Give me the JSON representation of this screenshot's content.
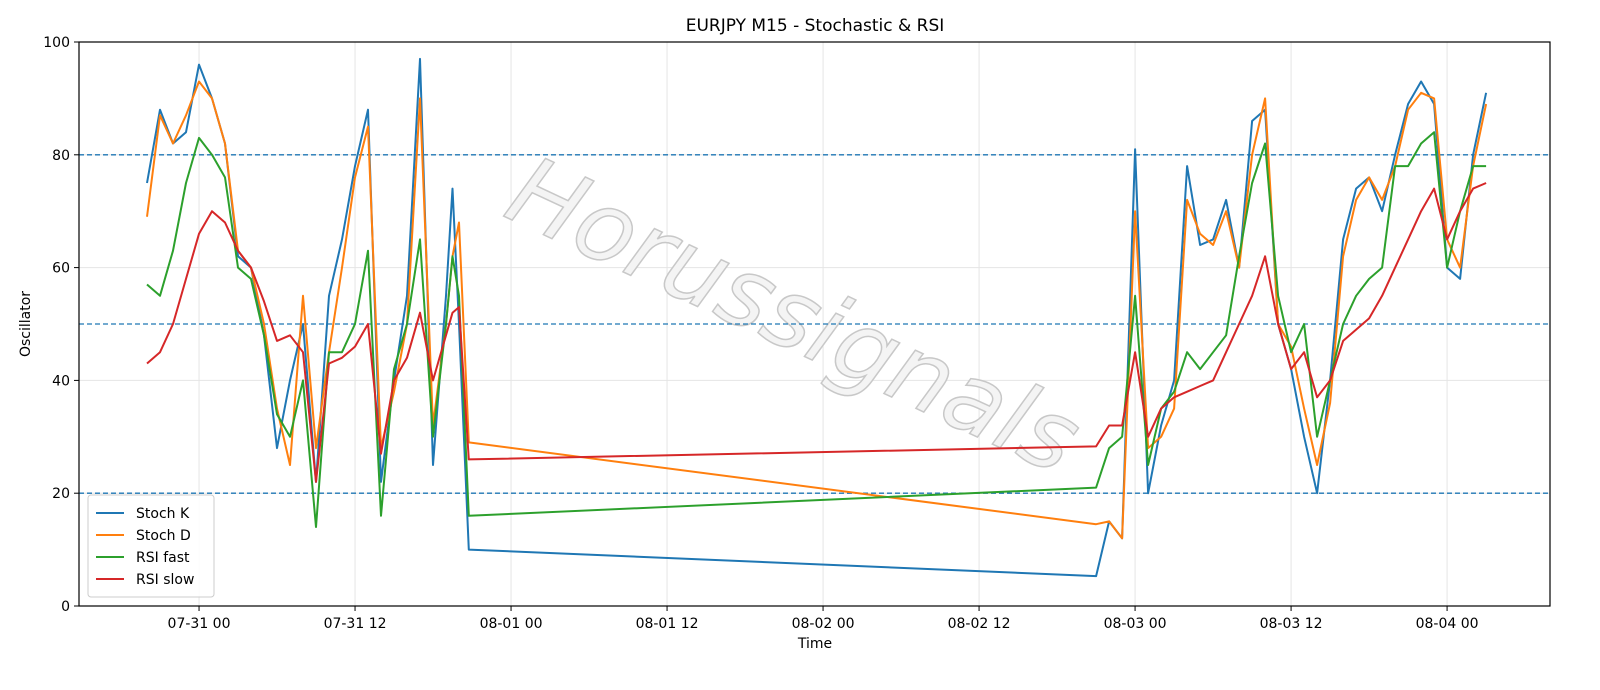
{
  "chart_data": {
    "type": "line",
    "title": "EURJPY M15 - Stochastic & RSI",
    "xlabel": "Time",
    "ylabel": "Oscillator",
    "watermark": "Horussignals",
    "x": [
      "07-30 20:00",
      "07-30 21:00",
      "07-30 22:00",
      "07-30 23:00",
      "07-31 00:00",
      "07-31 01:00",
      "07-31 02:00",
      "07-31 03:00",
      "07-31 04:00",
      "07-31 05:00",
      "07-31 06:00",
      "07-31 07:00",
      "07-31 08:00",
      "07-31 09:00",
      "07-31 10:00",
      "07-31 11:00",
      "07-31 12:00",
      "07-31 13:00",
      "07-31 14:00",
      "07-31 15:00",
      "07-31 16:00",
      "07-31 17:00",
      "07-31 18:00",
      "07-31 19:00",
      "07-31 19:30",
      "07-31 20:00",
      "07-31 20:45",
      "08-02 21:00",
      "08-02 22:00",
      "08-02 23:00",
      "08-03 00:00",
      "08-03 01:00",
      "08-03 02:00",
      "08-03 03:00",
      "08-03 04:00",
      "08-03 05:00",
      "08-03 06:00",
      "08-03 07:00",
      "08-03 08:00",
      "08-03 09:00",
      "08-03 10:00",
      "08-03 11:00",
      "08-03 12:00",
      "08-03 13:00",
      "08-03 14:00",
      "08-03 15:00",
      "08-03 16:00",
      "08-03 17:00",
      "08-03 18:00",
      "08-03 19:00",
      "08-03 20:00",
      "08-03 21:00",
      "08-03 22:00",
      "08-03 23:00",
      "08-04 00:00",
      "08-04 01:00",
      "08-04 02:00",
      "08-04 03:00"
    ],
    "series": [
      {
        "name": "Stoch K",
        "color": "#1f77b4",
        "values": [
          75,
          88,
          82,
          84,
          96,
          90,
          82,
          62,
          60,
          48,
          28,
          40,
          50,
          22,
          55,
          65,
          78,
          88,
          22,
          40,
          55,
          97,
          25,
          55,
          74,
          50,
          10,
          5.3,
          15,
          12,
          81,
          20,
          32,
          40,
          78,
          64,
          65,
          72,
          60,
          86,
          88,
          50,
          42,
          30,
          20,
          40,
          65,
          74,
          76,
          70,
          80,
          89,
          93,
          89,
          60,
          58,
          80,
          91
        ]
      },
      {
        "name": "Stoch D",
        "color": "#ff7f0e",
        "values": [
          69,
          87,
          82,
          87,
          93,
          90,
          82,
          63,
          60,
          50,
          35,
          25,
          55,
          28,
          45,
          60,
          76,
          85,
          28,
          38,
          50,
          90,
          32,
          50,
          62,
          68,
          29,
          14.5,
          15,
          12,
          70,
          28,
          30,
          35,
          72,
          66,
          64,
          70,
          60,
          80,
          90,
          50,
          46,
          35,
          25,
          36,
          62,
          72,
          76,
          72,
          78,
          88,
          91,
          90,
          65,
          60,
          78,
          89
        ]
      },
      {
        "name": "RSI fast",
        "color": "#2ca02c",
        "values": [
          57,
          55,
          63,
          75,
          83,
          80,
          76,
          60,
          58,
          48,
          34,
          30,
          40,
          14,
          45,
          45,
          50,
          63,
          16,
          42,
          50,
          65,
          30,
          50,
          62,
          55,
          16,
          21,
          28,
          30,
          55,
          25,
          35,
          38,
          45,
          42,
          45,
          48,
          62,
          75,
          82,
          55,
          45,
          50,
          30,
          40,
          50,
          55,
          58,
          60,
          78,
          78,
          82,
          84,
          60,
          70,
          78,
          78
        ]
      },
      {
        "name": "RSI slow",
        "color": "#d62728",
        "values": [
          43,
          45,
          50,
          58,
          66,
          70,
          68,
          63,
          60,
          54,
          47,
          48,
          45,
          22,
          43,
          44,
          46,
          50,
          27,
          40,
          44,
          52,
          40,
          48,
          52,
          53,
          26,
          28.3,
          32,
          32,
          45,
          30,
          35,
          37,
          38,
          39,
          40,
          45,
          50,
          55,
          62,
          50,
          42,
          45,
          37,
          40,
          47,
          49,
          51,
          55,
          60,
          65,
          70,
          74,
          65,
          70,
          74,
          75
        ]
      }
    ],
    "xlim": [
      "07-30 14:46",
      "08-04 07:55"
    ],
    "xticks": [
      "07-31 00",
      "07-31 12",
      "08-01 00",
      "08-01 12",
      "08-02 00",
      "08-02 12",
      "08-03 00",
      "08-03 12",
      "08-04 00"
    ],
    "ylim": [
      0,
      100
    ],
    "yticks": [
      0,
      20,
      40,
      60,
      80,
      100
    ],
    "hlines": [
      20,
      50,
      80
    ],
    "hline_color": "#1f77b4",
    "grid": true,
    "legend": "lower left"
  }
}
